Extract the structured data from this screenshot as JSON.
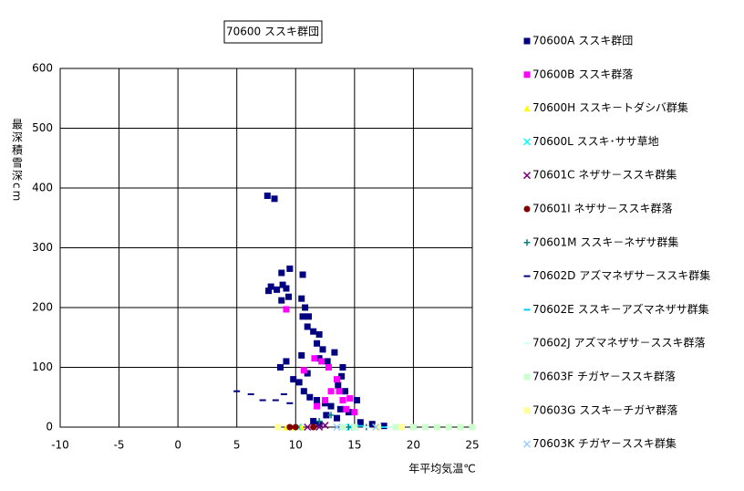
{
  "chart_data": {
    "type": "scatter",
    "title": "70600 ススキ群団",
    "x_label": "年平均気温℃",
    "y_label": "最深積雪深cm",
    "xlim": [
      -10,
      25
    ],
    "xticks": [
      -10,
      -5,
      0,
      5,
      10,
      15,
      20,
      25
    ],
    "ylim": [
      0,
      600
    ],
    "yticks": [
      0,
      100,
      200,
      300,
      400,
      500,
      600
    ],
    "grid": true,
    "series": [
      {
        "name": "70600A ススキ群団",
        "color": "#000080",
        "marker": "square",
        "x": [
          7.6,
          8.2,
          8.8,
          9.5,
          8.9,
          7.9,
          7.7,
          8.4,
          9.2,
          9.4,
          8.8,
          10.6,
          10.5,
          10.8,
          10.6,
          11.1,
          11.0,
          11.5,
          12.0,
          11.8,
          12.3,
          13.3,
          12.0,
          12.7,
          9.2,
          8.7,
          9.8,
          10.3,
          10.7,
          11.2,
          11.8,
          12.5,
          13.0,
          13.8,
          14.5,
          15.2,
          14.2,
          13.6,
          13.9,
          14.0,
          11.0,
          10.5,
          12.6,
          13.5,
          15.5,
          16.5,
          17.5,
          11.5,
          12.0
        ],
        "values": [
          387,
          382,
          258,
          265,
          238,
          235,
          228,
          230,
          232,
          218,
          212,
          255,
          215,
          200,
          185,
          185,
          168,
          160,
          155,
          140,
          130,
          125,
          115,
          110,
          110,
          100,
          80,
          75,
          60,
          50,
          45,
          40,
          35,
          30,
          25,
          45,
          60,
          70,
          85,
          100,
          90,
          120,
          20,
          15,
          8,
          5,
          2,
          10,
          5
        ]
      },
      {
        "name": "70600B ススキ群落",
        "color": "#ff00ff",
        "marker": "square",
        "x": [
          9.2,
          11.6,
          12.2,
          13.5,
          13.7,
          14.0,
          14.6,
          12.5,
          11.8,
          10.7,
          14.3,
          15.0,
          12.8,
          13.0
        ],
        "values": [
          197,
          115,
          110,
          80,
          60,
          45,
          48,
          45,
          35,
          95,
          30,
          25,
          100,
          60
        ]
      },
      {
        "name": "70600H ススキ－トダシバ群集",
        "color": "#ffff00",
        "marker": "triangle",
        "x": [
          9.2,
          9.8,
          10.5
        ],
        "values": [
          0,
          0,
          0
        ]
      },
      {
        "name": "70600L ススキ･ササ草地",
        "color": "#00ffff",
        "marker": "x",
        "x": [
          14.6,
          15.0,
          10.2
        ],
        "values": [
          0,
          0,
          0
        ]
      },
      {
        "name": "70601C ネザサ－ススキ群集",
        "color": "#800080",
        "marker": "x",
        "x": [
          11.0,
          12.0,
          12.5
        ],
        "values": [
          0,
          0,
          3
        ]
      },
      {
        "name": "70601I ネザサ－ススキ群落",
        "color": "#800000",
        "marker": "circle",
        "x": [
          9.5,
          10.0,
          11.5
        ],
        "values": [
          0,
          0,
          0
        ]
      },
      {
        "name": "70601M ススキ－ネザサ群集",
        "color": "#008080",
        "marker": "plus",
        "x": [
          12.0,
          13.0,
          14.5,
          16.0
        ],
        "values": [
          10,
          20,
          0,
          0
        ]
      },
      {
        "name": "70602D アズマネザサ－ススキ群集",
        "color": "#000080",
        "marker": "dash",
        "x": [
          5.0,
          7.2,
          8.3,
          9.0,
          9.5,
          6.2
        ],
        "values": [
          60,
          45,
          45,
          55,
          40,
          55
        ]
      },
      {
        "name": "70602E ススキ－アズマネザサ群集",
        "color": "#00ccff",
        "marker": "dash",
        "x": [
          15.5,
          17.5
        ],
        "values": [
          2,
          0
        ]
      },
      {
        "name": "70602J アズマネザサ－ススキ群落",
        "color": "#ccffff",
        "marker": "dash",
        "x": [
          16.0,
          18.0
        ],
        "values": [
          0,
          0
        ]
      },
      {
        "name": "70603F チガヤ－ススキ群落",
        "color": "#ccffcc",
        "marker": "square",
        "x": [
          14,
          15,
          18.5,
          19,
          20,
          21,
          22,
          23,
          24,
          25
        ],
        "values": [
          0,
          0,
          0,
          0,
          0,
          0,
          0,
          0,
          0,
          0
        ]
      },
      {
        "name": "70603G ススキ－チガヤ群落",
        "color": "#ffff99",
        "marker": "square",
        "x": [
          8.5,
          17,
          19
        ],
        "values": [
          0,
          0,
          0
        ]
      },
      {
        "name": "70603K チガヤ－ススキ群集",
        "color": "#99ccff",
        "marker": "x",
        "x": [
          13.5,
          16.8
        ],
        "values": [
          0,
          0
        ]
      }
    ]
  }
}
